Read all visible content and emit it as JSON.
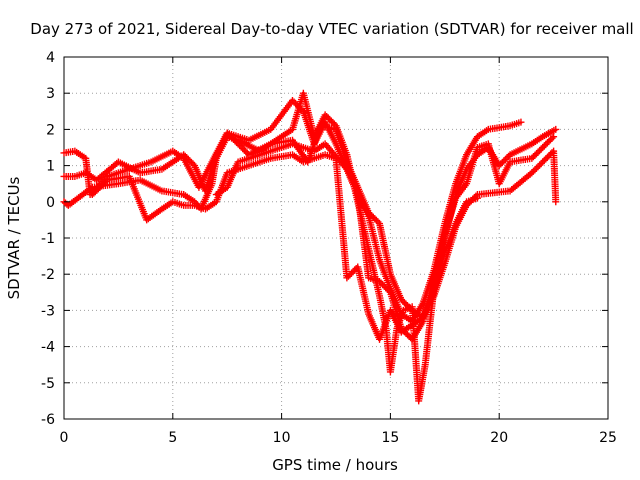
{
  "chart_data": {
    "type": "scatter",
    "title": "Day 273 of 2021, Sidereal Day-to-day VTEC variation (SDTVAR) for receiver mall",
    "xlabel": "GPS time / hours",
    "ylabel": "SDTVAR / TECUs",
    "xlim": [
      0,
      25
    ],
    "ylim": [
      -6,
      4
    ],
    "x_ticks": [
      "0",
      "5",
      "10",
      "15",
      "20",
      "25"
    ],
    "y_ticks": [
      "-6",
      "-5",
      "-4",
      "-3",
      "-2",
      "-1",
      "0",
      "1",
      "2",
      "3",
      "4"
    ],
    "grid": true,
    "marker": "+",
    "series_color": "#ff0000",
    "series": [
      {
        "points": [
          [
            0,
            1.35
          ],
          [
            0.5,
            1.4
          ],
          [
            1.0,
            1.2
          ],
          [
            1.2,
            0.2
          ],
          [
            2.0,
            0.7
          ],
          [
            3.0,
            0.9
          ],
          [
            4.0,
            1.1
          ],
          [
            5.0,
            1.4
          ],
          [
            5.5,
            1.2
          ],
          [
            6.2,
            0.4
          ],
          [
            6.8,
            1.1
          ],
          [
            7.5,
            1.9
          ],
          [
            8.5,
            1.7
          ],
          [
            9.5,
            2.0
          ],
          [
            10.5,
            2.8
          ],
          [
            11.0,
            2.5
          ],
          [
            11.5,
            1.6
          ],
          [
            12.0,
            2.2
          ],
          [
            12.5,
            1.6
          ],
          [
            13.0,
            0.9
          ],
          [
            13.5,
            0.2
          ],
          [
            14.0,
            -0.4
          ],
          [
            14.5,
            -1.6
          ],
          [
            15.0,
            -2.4
          ],
          [
            15.5,
            -3.1
          ],
          [
            16.0,
            -3.3
          ],
          [
            16.5,
            -2.8
          ],
          [
            17.0,
            -1.9
          ],
          [
            17.5,
            -0.6
          ],
          [
            18.0,
            0.5
          ],
          [
            18.5,
            1.3
          ],
          [
            19.0,
            1.8
          ],
          [
            19.5,
            2.0
          ],
          [
            20.5,
            2.1
          ],
          [
            21.0,
            2.2
          ]
        ]
      },
      {
        "points": [
          [
            0,
            0.7
          ],
          [
            0.5,
            0.7
          ],
          [
            1.0,
            0.8
          ],
          [
            1.5,
            0.6
          ],
          [
            2.5,
            1.1
          ],
          [
            3.5,
            0.8
          ],
          [
            4.5,
            0.9
          ],
          [
            5.5,
            1.3
          ],
          [
            6.0,
            1.0
          ],
          [
            6.5,
            0.3
          ],
          [
            7.0,
            1.3
          ],
          [
            7.5,
            1.9
          ],
          [
            8.5,
            1.3
          ],
          [
            9.5,
            1.6
          ],
          [
            10.5,
            1.7
          ],
          [
            11.2,
            1.1
          ],
          [
            11.8,
            2.1
          ],
          [
            12.5,
            2.0
          ],
          [
            13.0,
            1.1
          ],
          [
            13.5,
            0.4
          ],
          [
            14.0,
            -0.3
          ],
          [
            14.5,
            -0.6
          ],
          [
            15.0,
            -2.0
          ],
          [
            15.5,
            -2.7
          ],
          [
            16.0,
            -3.0
          ],
          [
            16.5,
            -3.2
          ],
          [
            17.0,
            -2.3
          ],
          [
            17.5,
            -1.0
          ],
          [
            18.0,
            0.2
          ],
          [
            18.5,
            0.9
          ],
          [
            19.0,
            1.3
          ],
          [
            19.5,
            1.5
          ],
          [
            20.0,
            1.0
          ],
          [
            20.5,
            1.3
          ],
          [
            21.5,
            1.6
          ],
          [
            22.0,
            1.8
          ],
          [
            22.6,
            2.0
          ]
        ]
      },
      {
        "points": [
          [
            0,
            0.0
          ],
          [
            0.2,
            -0.1
          ],
          [
            1.3,
            0.4
          ],
          [
            2.5,
            0.5
          ],
          [
            3.5,
            0.6
          ],
          [
            4.5,
            0.3
          ],
          [
            5.5,
            0.2
          ],
          [
            6.0,
            0.0
          ],
          [
            6.3,
            -0.2
          ],
          [
            6.8,
            0.5
          ],
          [
            7.0,
            1.2
          ],
          [
            7.5,
            1.8
          ],
          [
            8.0,
            1.7
          ],
          [
            9.0,
            1.4
          ],
          [
            10.0,
            1.8
          ],
          [
            10.5,
            2.0
          ],
          [
            11.0,
            3.0
          ],
          [
            11.5,
            1.8
          ],
          [
            12.0,
            2.4
          ],
          [
            12.5,
            2.1
          ],
          [
            13.0,
            1.3
          ],
          [
            13.5,
            0.0
          ],
          [
            14.0,
            -1.3
          ],
          [
            14.5,
            -2.6
          ],
          [
            14.8,
            -3.5
          ],
          [
            15.0,
            -4.7
          ],
          [
            15.3,
            -3.5
          ],
          [
            15.6,
            -3.0
          ],
          [
            16.0,
            -2.9
          ],
          [
            16.3,
            -5.5
          ],
          [
            16.6,
            -4.5
          ],
          [
            17.0,
            -2.4
          ],
          [
            17.5,
            -1.4
          ],
          [
            18.0,
            -0.6
          ],
          [
            18.5,
            0.0
          ],
          [
            19.0,
            0.1
          ]
        ]
      },
      {
        "points": [
          [
            1.3,
            0.2
          ],
          [
            2.0,
            0.6
          ],
          [
            3.0,
            0.7
          ],
          [
            3.8,
            -0.5
          ],
          [
            4.5,
            -0.2
          ],
          [
            5.0,
            0.0
          ],
          [
            5.5,
            -0.1
          ],
          [
            6.0,
            -0.1
          ],
          [
            6.5,
            -0.2
          ],
          [
            7.0,
            0.0
          ],
          [
            7.5,
            0.8
          ],
          [
            8.5,
            1.0
          ],
          [
            9.5,
            1.2
          ],
          [
            10.5,
            1.3
          ],
          [
            11.0,
            1.1
          ],
          [
            12.0,
            1.3
          ],
          [
            12.5,
            1.2
          ],
          [
            13.0,
            -2.1
          ],
          [
            13.5,
            -1.8
          ],
          [
            14.0,
            -3.1
          ],
          [
            14.5,
            -3.8
          ],
          [
            15.0,
            -3.0
          ],
          [
            15.5,
            -3.6
          ],
          [
            16.0,
            -3.4
          ],
          [
            16.5,
            -3.2
          ],
          [
            17.0,
            -2.6
          ],
          [
            17.5,
            -1.7
          ],
          [
            18.0,
            -0.7
          ],
          [
            18.5,
            -0.1
          ],
          [
            19.0,
            0.2
          ],
          [
            20.5,
            0.3
          ],
          [
            21.5,
            0.8
          ],
          [
            22.5,
            1.4
          ],
          [
            22.6,
            0.0
          ]
        ]
      },
      {
        "points": [
          [
            7.0,
            0.2
          ],
          [
            7.5,
            0.4
          ],
          [
            8.0,
            1.1
          ],
          [
            9.0,
            1.3
          ],
          [
            10.0,
            1.5
          ],
          [
            10.5,
            1.6
          ],
          [
            11.5,
            1.4
          ],
          [
            12.0,
            1.6
          ],
          [
            13.0,
            0.9
          ],
          [
            13.5,
            0.2
          ],
          [
            14.0,
            -2.1
          ],
          [
            14.5,
            -2.2
          ],
          [
            15.0,
            -2.5
          ],
          [
            15.5,
            -3.5
          ],
          [
            16.0,
            -3.8
          ],
          [
            16.5,
            -3.3
          ],
          [
            17.0,
            -2.1
          ],
          [
            17.5,
            -0.9
          ],
          [
            18.0,
            0.1
          ],
          [
            18.5,
            0.5
          ],
          [
            19.0,
            1.5
          ],
          [
            19.5,
            1.6
          ],
          [
            20.0,
            0.5
          ],
          [
            20.5,
            1.1
          ],
          [
            21.5,
            1.2
          ],
          [
            22.5,
            1.8
          ]
        ]
      }
    ]
  }
}
